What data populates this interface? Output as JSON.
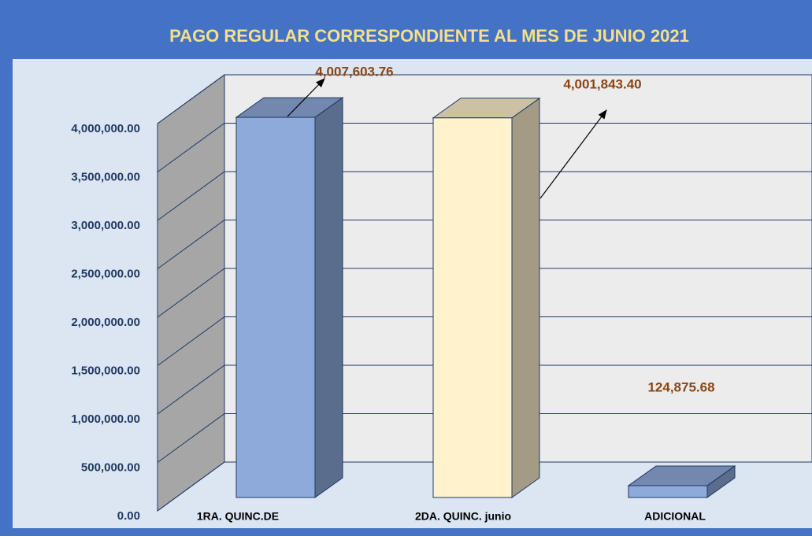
{
  "chart_data": {
    "type": "bar3d",
    "title": "PAGO REGULAR CORRESPONDIENTE AL MES DE JUNIO 2021",
    "categories": [
      "1RA. QUINC.DE",
      "2DA. QUINC. junio",
      "ADICIONAL"
    ],
    "values": [
      4007603.76,
      4001843.4,
      124875.68
    ],
    "value_labels": [
      "4,007,603.76",
      "4,001,843.40",
      "124,875.68"
    ],
    "colors": [
      "#8eaadb",
      "#fff2cc",
      "#8eaadb"
    ],
    "ylim": [
      0,
      4000000
    ],
    "yticks": [
      {
        "value": 0,
        "label": "0.00"
      },
      {
        "value": 500000,
        "label": "500,000.00"
      },
      {
        "value": 1000000,
        "label": "1,000,000.00"
      },
      {
        "value": 1500000,
        "label": "1,500,000.00"
      },
      {
        "value": 2000000,
        "label": "2,000,000.00"
      },
      {
        "value": 2500000,
        "label": "2,500,000.00"
      },
      {
        "value": 3000000,
        "label": "3,000,000.00"
      },
      {
        "value": 3500000,
        "label": "3,500,000.00"
      },
      {
        "value": 4000000,
        "label": "4,000,000.00"
      }
    ],
    "grid": true
  }
}
